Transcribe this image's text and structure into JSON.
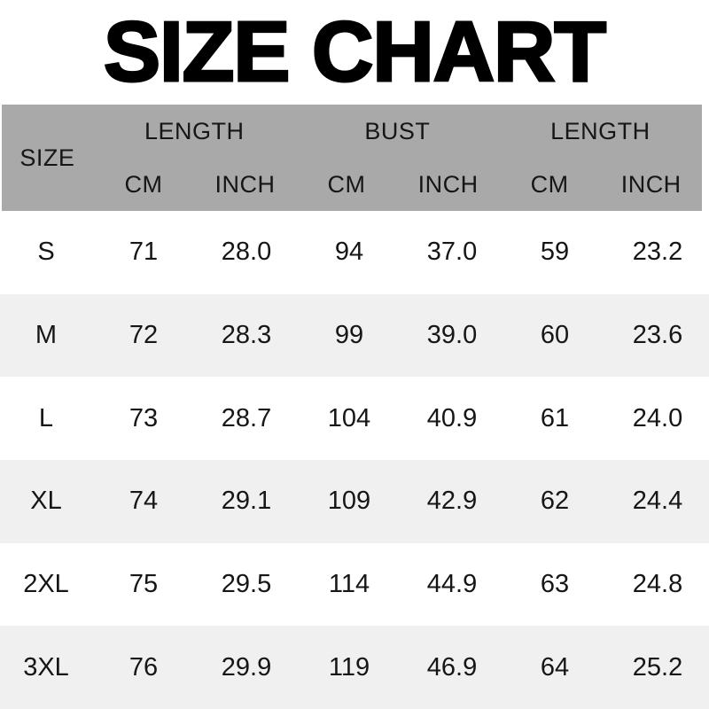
{
  "title": "SIZE CHART",
  "colors": {
    "header_bg": "#a9a9a9",
    "row_bg": "#ffffff",
    "row_alt_bg": "#f0f0f1",
    "text": "#161616",
    "title": "#000000"
  },
  "table": {
    "size_header": "SIZE",
    "groups": [
      {
        "label": "LENGTH",
        "sub": [
          "CM",
          "INCH"
        ]
      },
      {
        "label": "BUST",
        "sub": [
          "CM",
          "INCH"
        ]
      },
      {
        "label": "LENGTH",
        "sub": [
          "CM",
          "INCH"
        ]
      }
    ],
    "rows": [
      {
        "size": "S",
        "cells": [
          "71",
          "28.0",
          "94",
          "37.0",
          "59",
          "23.2"
        ]
      },
      {
        "size": "M",
        "cells": [
          "72",
          "28.3",
          "99",
          "39.0",
          "60",
          "23.6"
        ]
      },
      {
        "size": "L",
        "cells": [
          "73",
          "28.7",
          "104",
          "40.9",
          "61",
          "24.0"
        ]
      },
      {
        "size": "XL",
        "cells": [
          "74",
          "29.1",
          "109",
          "42.9",
          "62",
          "24.4"
        ]
      },
      {
        "size": "2XL",
        "cells": [
          "75",
          "29.5",
          "114",
          "44.9",
          "63",
          "24.8"
        ]
      },
      {
        "size": "3XL",
        "cells": [
          "76",
          "29.9",
          "119",
          "46.9",
          "64",
          "25.2"
        ]
      }
    ]
  },
  "chart_data": {
    "type": "table",
    "title": "SIZE CHART",
    "columns": [
      "SIZE",
      "LENGTH CM",
      "LENGTH INCH",
      "BUST CM",
      "BUST INCH",
      "LENGTH CM",
      "LENGTH INCH"
    ],
    "rows": [
      [
        "S",
        71,
        28.0,
        94,
        37.0,
        59,
        23.2
      ],
      [
        "M",
        72,
        28.3,
        99,
        39.0,
        60,
        23.6
      ],
      [
        "L",
        73,
        28.7,
        104,
        40.9,
        61,
        24.0
      ],
      [
        "XL",
        74,
        29.1,
        109,
        42.9,
        62,
        24.4
      ],
      [
        "2XL",
        75,
        29.5,
        114,
        44.9,
        63,
        24.8
      ],
      [
        "3XL",
        76,
        29.9,
        119,
        46.9,
        64,
        25.2
      ]
    ]
  }
}
